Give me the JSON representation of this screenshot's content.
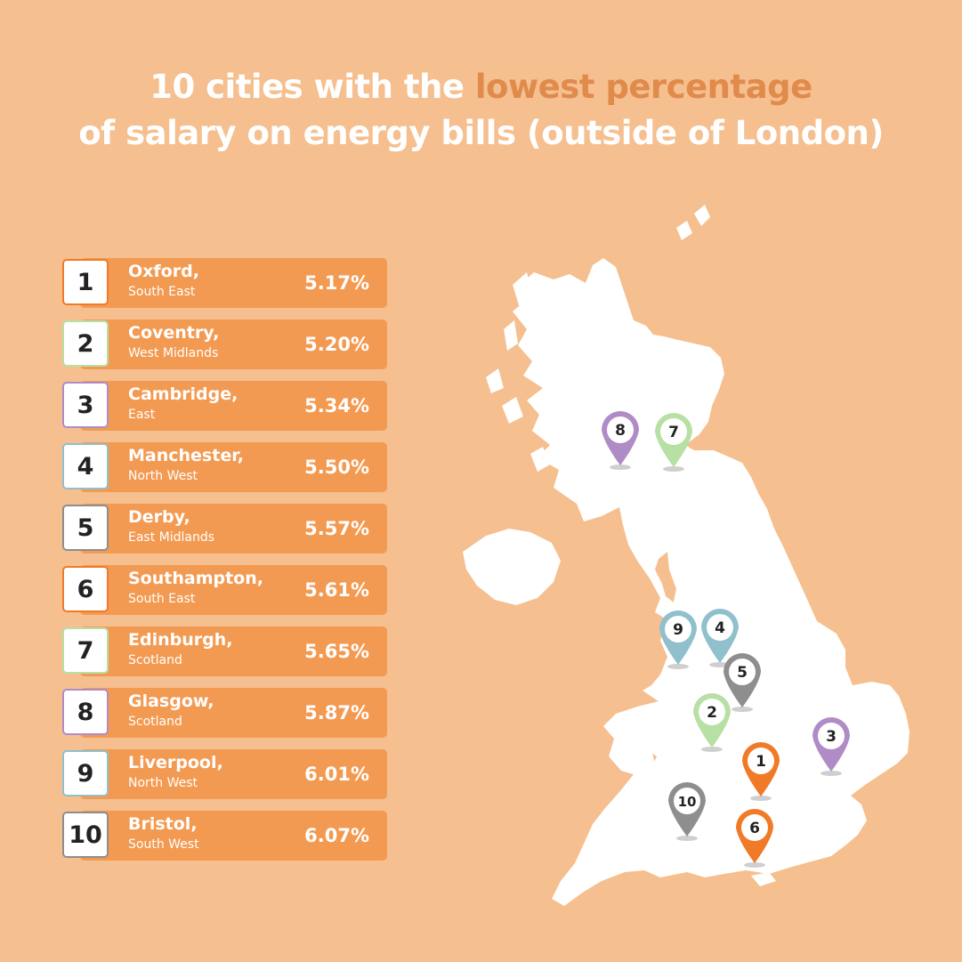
{
  "title": {
    "line1_pre": "10 cities with the",
    "line1_highlight": "lowest percentage",
    "line2": "of salary on energy bills (outside of London)"
  },
  "colors": {
    "background": "#f5bf8f",
    "bar": "#f39a52",
    "highlight": "#e08a4c",
    "map_fill": "#ffffff",
    "orange": "#f07a28",
    "green": "#b7e0a5",
    "purple": "#b08cc6",
    "teal": "#8fc0cc",
    "gray": "#8e8e8e"
  },
  "rankings": [
    {
      "rank": "1",
      "city": "Oxford,",
      "region": "South East",
      "percent": "5.17%",
      "color": "#f07a28"
    },
    {
      "rank": "2",
      "city": "Coventry,",
      "region": "West Midlands",
      "percent": "5.20%",
      "color": "#b7e0a5"
    },
    {
      "rank": "3",
      "city": "Cambridge,",
      "region": "East",
      "percent": "5.34%",
      "color": "#b08cc6"
    },
    {
      "rank": "4",
      "city": "Manchester,",
      "region": "North West",
      "percent": "5.50%",
      "color": "#8fc0cc"
    },
    {
      "rank": "5",
      "city": "Derby,",
      "region": "East Midlands",
      "percent": "5.57%",
      "color": "#8e8e8e"
    },
    {
      "rank": "6",
      "city": "Southampton,",
      "region": "South East",
      "percent": "5.61%",
      "color": "#f07a28"
    },
    {
      "rank": "7",
      "city": "Edinburgh,",
      "region": "Scotland",
      "percent": "5.65%",
      "color": "#b7e0a5"
    },
    {
      "rank": "8",
      "city": "Glasgow,",
      "region": "Scotland",
      "percent": "5.87%",
      "color": "#b08cc6"
    },
    {
      "rank": "9",
      "city": "Liverpool,",
      "region": "North West",
      "percent": "6.01%",
      "color": "#8fc0cc"
    },
    {
      "rank": "10",
      "city": "Bristol,",
      "region": "South West",
      "percent": "6.07%",
      "color": "#8e8e8e"
    }
  ],
  "map_pins": [
    {
      "label": "8",
      "color": "#b08cc6"
    },
    {
      "label": "7",
      "color": "#b7e0a5"
    },
    {
      "label": "9",
      "color": "#8fc0cc"
    },
    {
      "label": "4",
      "color": "#8fc0cc"
    },
    {
      "label": "5",
      "color": "#8e8e8e"
    },
    {
      "label": "2",
      "color": "#b7e0a5"
    },
    {
      "label": "3",
      "color": "#b08cc6"
    },
    {
      "label": "1",
      "color": "#f07a28"
    },
    {
      "label": "10",
      "color": "#8e8e8e"
    },
    {
      "label": "6",
      "color": "#f07a28"
    }
  ]
}
